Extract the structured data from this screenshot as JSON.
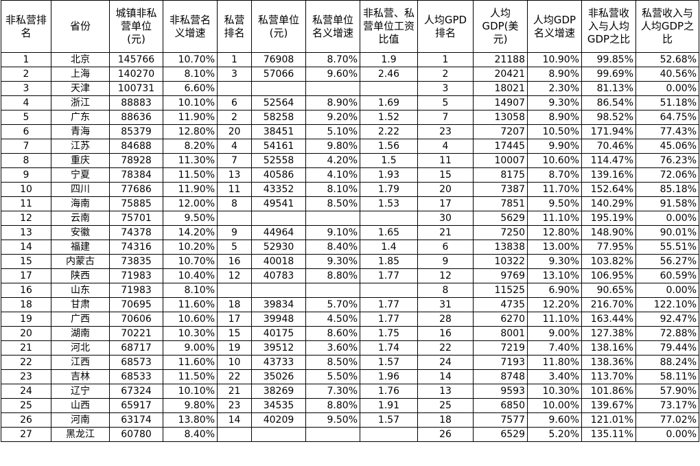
{
  "columns": [
    "非私营排名",
    "省份",
    "城镇非私营单位(元)",
    "非私营名义增速",
    "私营排名",
    "私营单位(元)",
    "私营单位名义增速",
    "非私营、私营单位工资比值",
    "人均GPD排名",
    "人均GDP(美元)",
    "人均GDP名义增速",
    "非私营收入与人均GDP之比",
    "私营收入与人均GDP之比"
  ],
  "rows": [
    [
      "1",
      "北京",
      "145766",
      "10.70%",
      "1",
      "76908",
      "8.70%",
      "1.9",
      "1",
      "21188",
      "10.90%",
      "99.85%",
      "52.68%"
    ],
    [
      "2",
      "上海",
      "140270",
      "8.10%",
      "3",
      "57066",
      "9.60%",
      "2.46",
      "2",
      "20421",
      "8.90%",
      "99.69%",
      "40.56%"
    ],
    [
      "3",
      "天津",
      "100731",
      "6.60%",
      "",
      "",
      "",
      "",
      "3",
      "18021",
      "2.30%",
      "81.13%",
      "0.00%"
    ],
    [
      "4",
      "浙江",
      "88883",
      "10.10%",
      "6",
      "52564",
      "8.90%",
      "1.69",
      "5",
      "14907",
      "9.30%",
      "86.54%",
      "51.18%"
    ],
    [
      "5",
      "广东",
      "88636",
      "11.90%",
      "2",
      "58258",
      "9.20%",
      "1.52",
      "7",
      "13058",
      "8.90%",
      "98.52%",
      "64.75%"
    ],
    [
      "6",
      "青海",
      "85379",
      "12.80%",
      "20",
      "38451",
      "5.10%",
      "2.22",
      "23",
      "7207",
      "10.50%",
      "171.94%",
      "77.43%"
    ],
    [
      "7",
      "江苏",
      "84688",
      "8.20%",
      "4",
      "54161",
      "9.80%",
      "1.56",
      "4",
      "17445",
      "9.90%",
      "70.46%",
      "45.06%"
    ],
    [
      "8",
      "重庆",
      "78928",
      "11.30%",
      "7",
      "52558",
      "4.20%",
      "1.5",
      "11",
      "10007",
      "10.60%",
      "114.47%",
      "76.23%"
    ],
    [
      "9",
      "宁夏",
      "78384",
      "11.50%",
      "13",
      "40586",
      "4.10%",
      "1.93",
      "15",
      "8175",
      "8.70%",
      "139.16%",
      "72.06%"
    ],
    [
      "10",
      "四川",
      "77686",
      "11.90%",
      "11",
      "43352",
      "8.10%",
      "1.79",
      "20",
      "7387",
      "11.70%",
      "152.64%",
      "85.18%"
    ],
    [
      "11",
      "海南",
      "75885",
      "12.00%",
      "8",
      "49541",
      "8.50%",
      "1.53",
      "17",
      "7851",
      "9.50%",
      "140.29%",
      "91.58%"
    ],
    [
      "12",
      "云南",
      "75701",
      "9.50%",
      "",
      "",
      "",
      "",
      "30",
      "5629",
      "11.10%",
      "195.19%",
      "0.00%"
    ],
    [
      "13",
      "安徽",
      "74378",
      "14.20%",
      "9",
      "44964",
      "9.10%",
      "1.65",
      "21",
      "7250",
      "12.80%",
      "148.90%",
      "90.01%"
    ],
    [
      "14",
      "福建",
      "74316",
      "10.20%",
      "5",
      "52930",
      "8.40%",
      "1.4",
      "6",
      "13838",
      "13.00%",
      "77.95%",
      "55.51%"
    ],
    [
      "15",
      "内蒙古",
      "73835",
      "10.70%",
      "16",
      "40018",
      "9.30%",
      "1.85",
      "9",
      "10322",
      "9.30%",
      "103.82%",
      "56.27%"
    ],
    [
      "17",
      "陕西",
      "71983",
      "10.40%",
      "12",
      "40783",
      "8.80%",
      "1.77",
      "12",
      "9769",
      "13.10%",
      "106.95%",
      "60.59%"
    ],
    [
      "16",
      "山东",
      "71983",
      "8.10%",
      "",
      "",
      "",
      "",
      "8",
      "11525",
      "6.90%",
      "90.65%",
      "0.00%"
    ],
    [
      "18",
      "甘肃",
      "70695",
      "11.60%",
      "18",
      "39834",
      "5.70%",
      "1.77",
      "31",
      "4735",
      "12.20%",
      "216.70%",
      "122.10%"
    ],
    [
      "19",
      "广西",
      "70606",
      "10.60%",
      "17",
      "39948",
      "4.50%",
      "1.77",
      "28",
      "6270",
      "11.10%",
      "163.44%",
      "92.47%"
    ],
    [
      "20",
      "湖南",
      "70221",
      "10.30%",
      "15",
      "40175",
      "8.60%",
      "1.75",
      "16",
      "8001",
      "9.00%",
      "127.38%",
      "72.88%"
    ],
    [
      "21",
      "河北",
      "68717",
      "9.00%",
      "19",
      "39512",
      "3.60%",
      "1.74",
      "22",
      "7219",
      "7.40%",
      "138.16%",
      "79.44%"
    ],
    [
      "22",
      "江西",
      "68573",
      "11.60%",
      "10",
      "43733",
      "8.50%",
      "1.57",
      "24",
      "7193",
      "11.80%",
      "138.36%",
      "88.24%"
    ],
    [
      "23",
      "吉林",
      "68533",
      "11.50%",
      "22",
      "35026",
      "5.50%",
      "1.96",
      "14",
      "8748",
      "3.40%",
      "113.70%",
      "58.11%"
    ],
    [
      "24",
      "辽宁",
      "67324",
      "10.10%",
      "21",
      "38269",
      "7.30%",
      "1.76",
      "13",
      "9593",
      "10.30%",
      "101.86%",
      "57.90%"
    ],
    [
      "25",
      "山西",
      "65917",
      "9.80%",
      "23",
      "34535",
      "8.80%",
      "1.91",
      "25",
      "6850",
      "10.00%",
      "139.67%",
      "73.17%"
    ],
    [
      "26",
      "河南",
      "63174",
      "13.80%",
      "14",
      "40209",
      "9.50%",
      "1.57",
      "18",
      "7577",
      "9.60%",
      "121.01%",
      "77.02%"
    ],
    [
      "27",
      "黑龙江",
      "60780",
      "8.40%",
      "",
      "",
      "",
      "",
      "26",
      "6529",
      "5.20%",
      "135.11%",
      "0.00%"
    ]
  ]
}
